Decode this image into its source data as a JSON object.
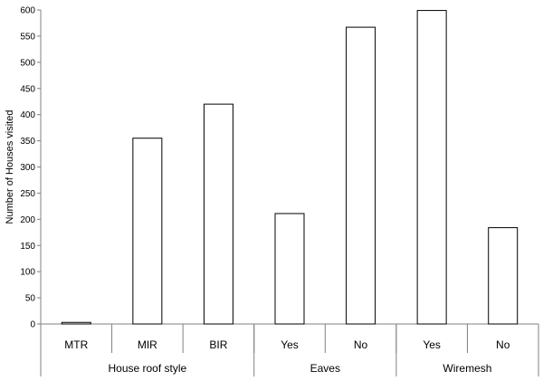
{
  "chart_data": {
    "type": "bar",
    "ylabel": "Number of Houses visited",
    "xlabel": "",
    "ylim": [
      0,
      600
    ],
    "ytick_step": 50,
    "grid": false,
    "categories": [
      "MTR",
      "MIR",
      "BIR",
      "Yes",
      "No",
      "Yes",
      "No"
    ],
    "values": [
      3,
      355,
      420,
      211,
      567,
      599,
      184
    ],
    "groups": [
      {
        "label": "House roof style",
        "count": 3
      },
      {
        "label": "Eaves",
        "count": 2
      },
      {
        "label": "Wiremesh",
        "count": 2
      }
    ],
    "colors": {
      "bar_fill": "#ffffff",
      "bar_stroke": "#000000",
      "axis": "#808080"
    }
  }
}
